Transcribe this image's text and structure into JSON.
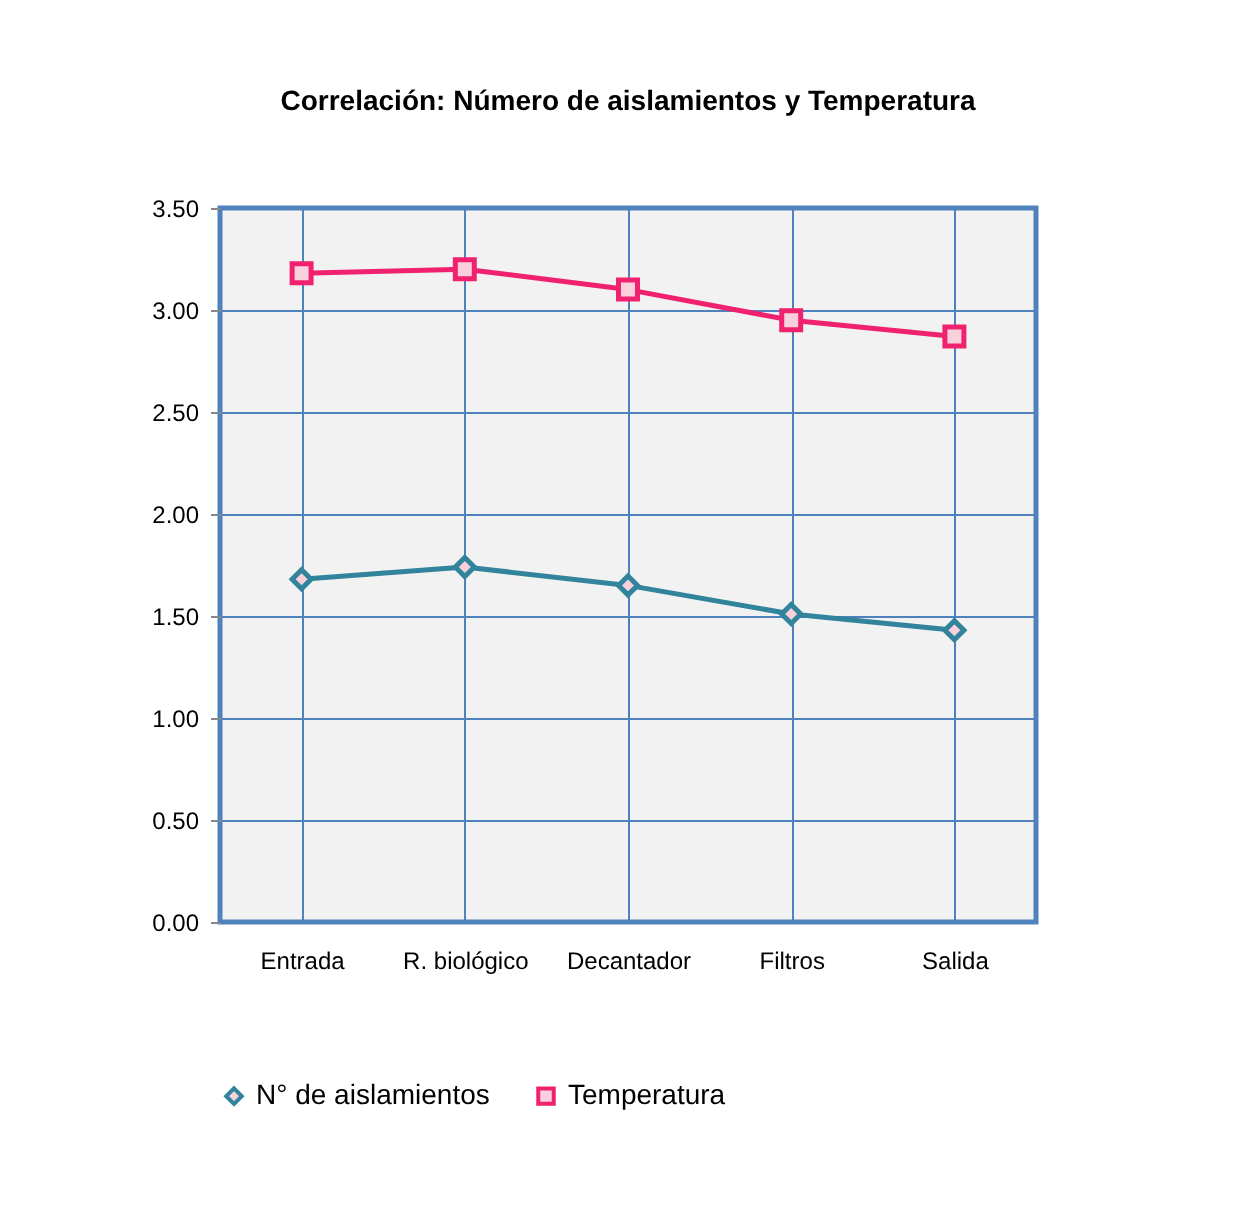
{
  "chart_data": {
    "type": "line",
    "title": "Correlación: Número de aislamientos  y Temperatura",
    "categories": [
      "Entrada",
      "R. biológico",
      "Decantador",
      "Filtros",
      "Salida"
    ],
    "series": [
      {
        "name": "N° de aislamientos",
        "color": "#31849b",
        "marker": "diamond",
        "values": [
          1.68,
          1.74,
          1.65,
          1.51,
          1.43
        ]
      },
      {
        "name": "Temperatura",
        "color": "#f0216e",
        "marker": "square",
        "values": [
          3.18,
          3.2,
          3.1,
          2.95,
          2.87
        ]
      }
    ],
    "ylim": [
      0,
      3.5
    ],
    "yticks": [
      {
        "value": 0,
        "label": "0.00"
      },
      {
        "value": 0.5,
        "label": "0.50"
      },
      {
        "value": 1,
        "label": "1.00"
      },
      {
        "value": 1.5,
        "label": "1.50"
      },
      {
        "value": 2,
        "label": "2.00"
      },
      {
        "value": 2.5,
        "label": "2.50"
      },
      {
        "value": 3,
        "label": "3.00"
      },
      {
        "value": 3.5,
        "label": "3.50"
      }
    ],
    "grid": true,
    "legend": "bottom",
    "line_style": "solid"
  }
}
